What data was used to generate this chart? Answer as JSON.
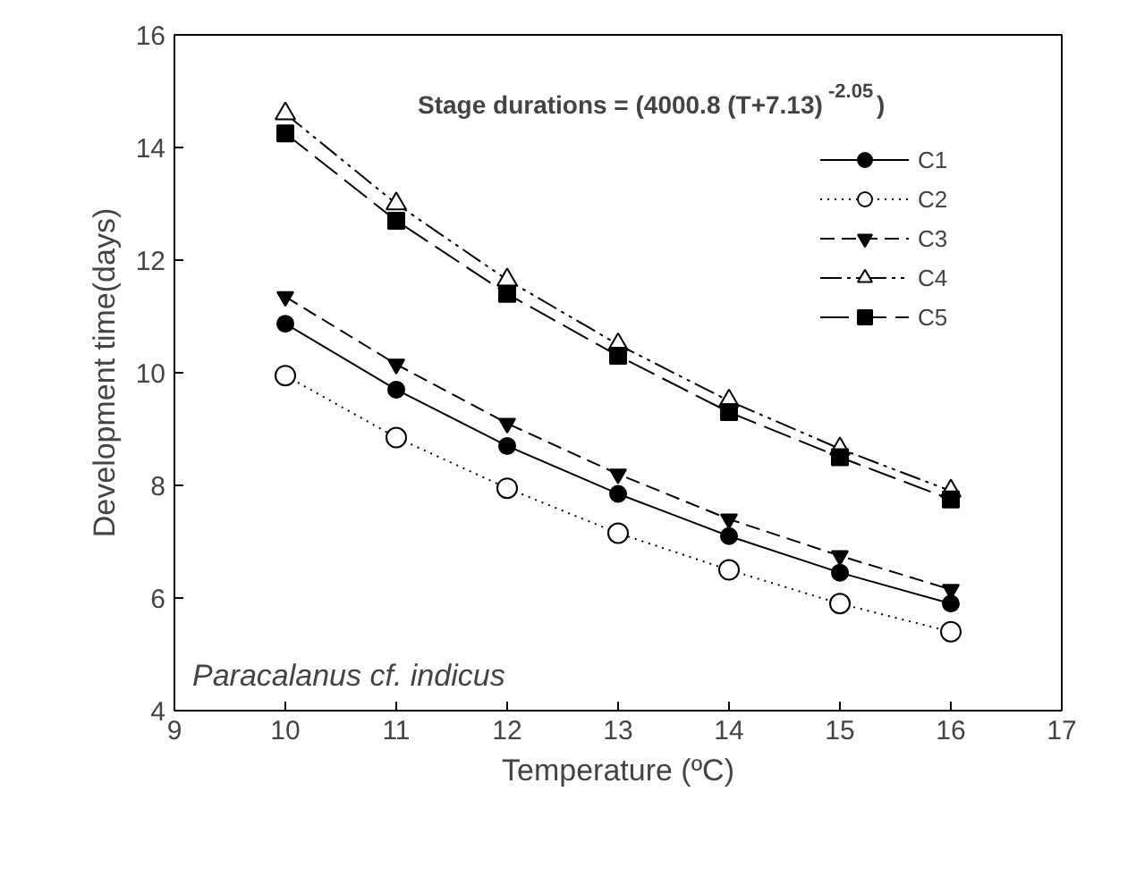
{
  "chart_data": {
    "type": "line",
    "xlabel": "Temperature (ºC)",
    "ylabel": "Development time(days)",
    "x": [
      10,
      11,
      12,
      13,
      14,
      15,
      16
    ],
    "xlim": [
      9,
      17
    ],
    "xticks": [
      9,
      10,
      11,
      12,
      13,
      14,
      15,
      16,
      17
    ],
    "ylim": [
      4,
      16
    ],
    "yticks": [
      4,
      6,
      8,
      10,
      12,
      14,
      16
    ],
    "grid": false,
    "legend": "top right",
    "annotations": [
      "Stage durations = (4000.8 (T+7.13)$^{-2.05}$)",
      "Paracalanus cf. indicus"
    ],
    "series": [
      {
        "name": "C1",
        "color": "#000000",
        "marker": "circle",
        "line_style": "solid",
        "values": [
          10.87,
          9.7,
          8.7,
          7.85,
          7.1,
          6.45,
          5.9
        ]
      },
      {
        "name": "C2",
        "color": "#000000",
        "marker": "circle",
        "line_style": "dotted",
        "values": [
          9.95,
          8.85,
          7.95,
          7.15,
          6.5,
          5.9,
          5.4
        ]
      },
      {
        "name": "C3",
        "color": "#000000",
        "marker": "triangle",
        "line_style": "dashed",
        "values": [
          11.35,
          10.15,
          9.1,
          8.2,
          7.4,
          6.75,
          6.15
        ]
      },
      {
        "name": "C4",
        "color": "#000000",
        "marker": "triangle",
        "line_style": "dashdotdot",
        "values": [
          14.6,
          13.0,
          11.65,
          10.5,
          9.5,
          8.65,
          7.9
        ]
      },
      {
        "name": "C5",
        "color": "#000000",
        "marker": "square",
        "line_style": "longdash",
        "values": [
          14.25,
          12.7,
          11.4,
          10.3,
          9.3,
          8.5,
          7.75
        ]
      }
    ]
  }
}
